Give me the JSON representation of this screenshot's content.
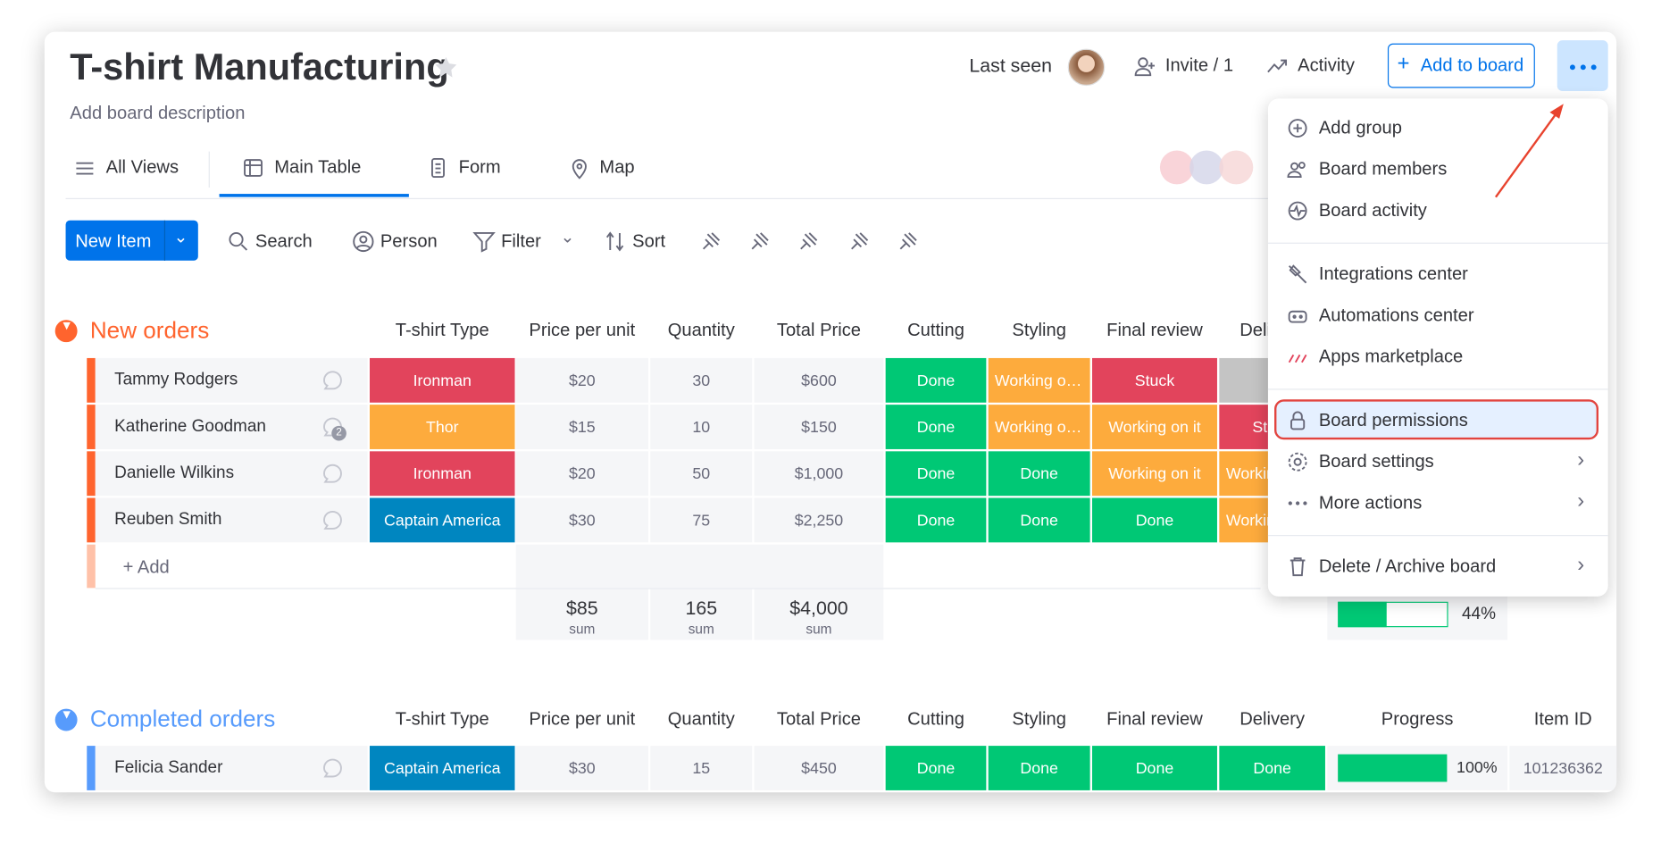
{
  "header": {
    "title": "T-shirt Manufacturing",
    "description": "Add board description",
    "last_seen": "Last seen",
    "invite": "Invite / 1",
    "activity": "Activity",
    "add_to_board": "Add to board"
  },
  "views": [
    "All Views",
    "Main Table",
    "Form",
    "Map"
  ],
  "toolbar": {
    "new_item": "New Item",
    "tools": [
      "Search",
      "Person",
      "Filter",
      "Sort"
    ]
  },
  "groups": [
    {
      "name": "New orders",
      "columns": [
        "T-shirt Type",
        "Price per unit",
        "Quantity",
        "Total Price",
        "Cutting",
        "Styling",
        "Final review",
        "Delivery"
      ],
      "rows": [
        {
          "name": "Tammy Rodgers",
          "cells": [
            "Ironman",
            "$20",
            "30",
            "$600",
            "Done",
            "Working on it",
            "Stuck",
            null
          ]
        },
        {
          "name": "Katherine Goodman",
          "comment_count": "2",
          "cells": [
            "Thor",
            "$15",
            "10",
            "$150",
            "Done",
            "Working on it",
            "Working on it",
            "Stuck"
          ]
        },
        {
          "name": "Danielle Wilkins",
          "cells": [
            "Ironman",
            "$20",
            "50",
            "$1,000",
            "Done",
            "Done",
            "Working on it",
            "Working on it"
          ]
        },
        {
          "name": "Reuben Smith",
          "cells": [
            "Captain America",
            "$30",
            "75",
            "$2,250",
            "Done",
            "Done",
            "Done",
            "Working on it"
          ]
        }
      ],
      "add": "+ Add",
      "summary": [
        {
          "value": "$85",
          "label": "sum"
        },
        {
          "value": "165",
          "label": "sum"
        },
        {
          "value": "$4,000",
          "label": "sum"
        }
      ],
      "progress": "44%"
    },
    {
      "name": "Completed orders",
      "columns": [
        "T-shirt Type",
        "Price per unit",
        "Quantity",
        "Total Price",
        "Cutting",
        "Styling",
        "Final review",
        "Delivery",
        "Progress",
        "Item ID"
      ],
      "rows": [
        {
          "name": "Felicia Sander",
          "cells": [
            "Captain America",
            "$30",
            "15",
            "$450",
            "Done",
            "Done",
            "Done",
            "Done",
            "100%",
            "101236362"
          ]
        }
      ]
    }
  ],
  "menu": [
    {
      "label": "Add group"
    },
    {
      "label": "Board members"
    },
    {
      "label": "Board activity"
    },
    {
      "label": "Integrations center"
    },
    {
      "label": "Automations center"
    },
    {
      "label": "Apps marketplace"
    },
    {
      "label": "Board permissions"
    },
    {
      "label": "Board settings"
    },
    {
      "label": "More actions"
    },
    {
      "label": "Delete / Archive board"
    }
  ]
}
